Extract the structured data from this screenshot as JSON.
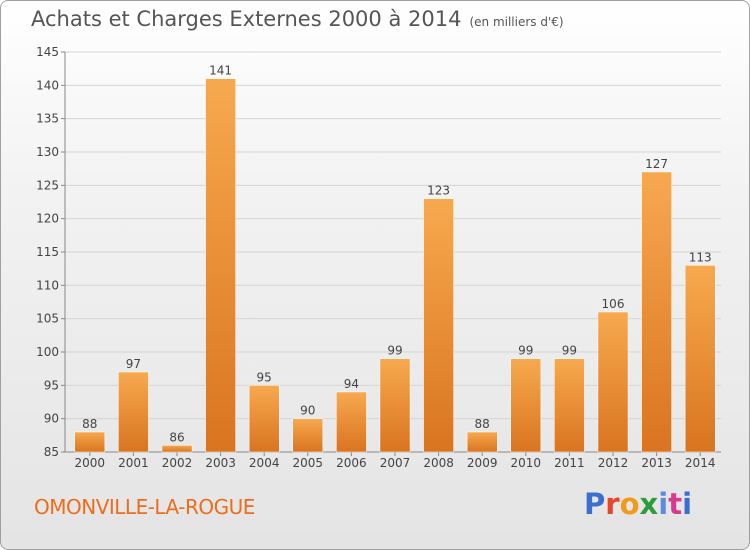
{
  "header": {
    "title": "Achats et Charges Externes 2000 à 2014",
    "subtitle": "(en milliers d'€)"
  },
  "footer": {
    "commune": "OMONVILLE-LA-ROGUE",
    "brand": "Proxiti"
  },
  "colors": {
    "bar_light": "#f7a94f",
    "bar_dark": "#d97420",
    "commune_text": "#ee6d1c"
  },
  "chart_data": {
    "type": "bar",
    "categories": [
      "2000",
      "2001",
      "2002",
      "2003",
      "2004",
      "2005",
      "2006",
      "2007",
      "2008",
      "2009",
      "2010",
      "2011",
      "2012",
      "2013",
      "2014"
    ],
    "values": [
      88,
      97,
      86,
      141,
      95,
      90,
      94,
      99,
      123,
      88,
      99,
      99,
      106,
      127,
      113
    ],
    "ylim": [
      85,
      145
    ],
    "yticks": [
      85,
      90,
      95,
      100,
      105,
      110,
      115,
      120,
      125,
      130,
      135,
      140,
      145
    ],
    "grid": true,
    "data_labels": true
  }
}
